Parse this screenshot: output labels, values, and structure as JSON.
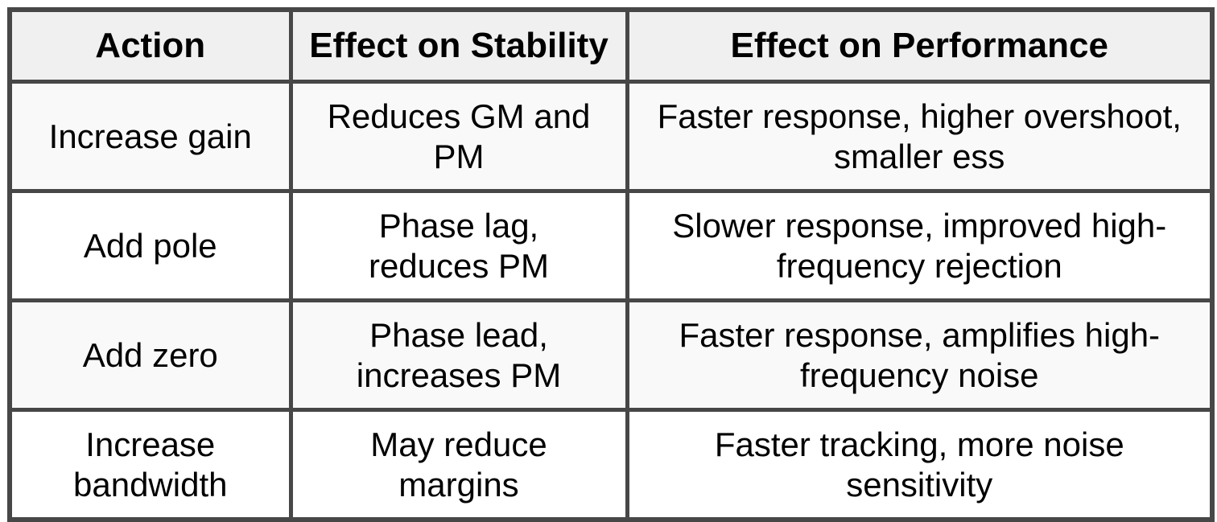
{
  "table": {
    "headers": [
      "Action",
      "Effect on Stability",
      "Effect on Performance"
    ],
    "rows": [
      [
        "Increase gain",
        "Reduces GM and\nPM",
        "Faster response, higher overshoot,\nsmaller ess"
      ],
      [
        "Add pole",
        "Phase lag,\nreduces PM",
        "Slower response, improved high-\nfrequency rejection"
      ],
      [
        "Add zero",
        "Phase lead,\nincreases PM",
        "Faster response, amplifies high-\nfrequency noise"
      ],
      [
        "Increase\nbandwidth",
        "May reduce\nmargins",
        "Faster tracking, more noise\nsensitivity"
      ]
    ]
  },
  "chart_data": {
    "type": "table",
    "title": "",
    "columns": [
      "Action",
      "Effect on Stability",
      "Effect on Performance"
    ],
    "rows": [
      [
        "Increase gain",
        "Reduces GM and PM",
        "Faster response, higher overshoot, smaller ess"
      ],
      [
        "Add pole",
        "Phase lag, reduces PM",
        "Slower response, improved high-frequency rejection"
      ],
      [
        "Add zero",
        "Phase lead, increases PM",
        "Faster response, amplifies high-frequency noise"
      ],
      [
        "Increase bandwidth",
        "May reduce margins",
        "Faster tracking, more noise sensitivity"
      ]
    ]
  },
  "colors": {
    "border": "#474747",
    "header_bg": "#f0f0f0",
    "row_odd_bg": "#f8f9f8",
    "row_even_bg": "#ffffff",
    "text": "#000000"
  }
}
